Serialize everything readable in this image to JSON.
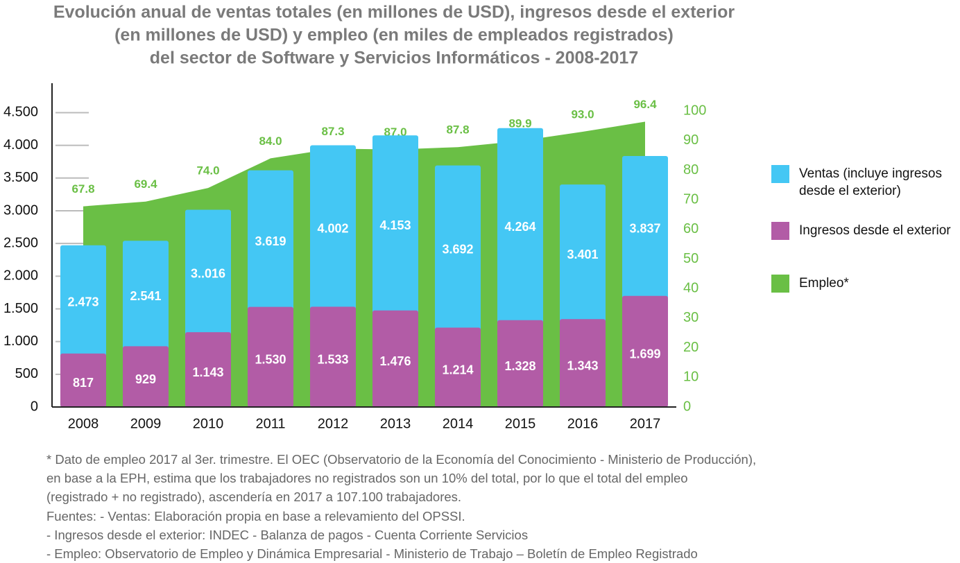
{
  "chart_data": {
    "type": "bar",
    "title": [
      "Evolución anual de ventas totales (en millones de USD), ingresos desde el exterior",
      "(en millones de USD) y empleo (en miles de empleados registrados)",
      "del sector de Software y Servicios Informáticos - 2008-2017"
    ],
    "categories": [
      "2008",
      "2009",
      "2010",
      "2011",
      "2012",
      "2013",
      "2014",
      "2015",
      "2016",
      "2017"
    ],
    "series": [
      {
        "name": "Ventas (incluye ingresos desde el exterior)",
        "color": "#44c7f4",
        "values": [
          2473,
          2541,
          3016,
          3619,
          4002,
          4153,
          3692,
          4264,
          3401,
          3837
        ],
        "value_labels": [
          "2.473",
          "2.541",
          "3..016",
          "3.619",
          "4.002",
          "4.153",
          "3.692",
          "4.264",
          "3.401",
          "3.837"
        ]
      },
      {
        "name": "Ingresos desde el exterior",
        "color": "#b25ca6",
        "values": [
          817,
          929,
          1143,
          1530,
          1533,
          1476,
          1214,
          1328,
          1343,
          1699
        ],
        "value_labels": [
          "817",
          "929",
          "1.143",
          "1.530",
          "1.533",
          "1.476",
          "1.214",
          "1.328",
          "1.343",
          "1.699"
        ]
      },
      {
        "name": "Empleo*",
        "color": "#6abf45",
        "axis": "y2",
        "values": [
          67.8,
          69.4,
          74.0,
          84.0,
          87.3,
          87.0,
          87.8,
          89.9,
          93.0,
          96.4
        ],
        "value_labels": [
          "67.8",
          "69.4",
          "74.0",
          "84.0",
          "87.3",
          "87.0",
          "87.8",
          "89.9",
          "93.0",
          "96.4"
        ]
      }
    ],
    "ylim": [
      0,
      4950
    ],
    "yticks": [
      0,
      500,
      {
        "value": 1000,
        "label": "1.000"
      },
      {
        "value": 1500,
        "label": "1.500"
      },
      {
        "value": 2000,
        "label": "2.000"
      },
      {
        "value": 2500,
        "label": "2.500"
      },
      {
        "value": 3000,
        "label": "3.000"
      },
      {
        "value": 3500,
        "label": "3.500"
      },
      {
        "value": 4000,
        "label": "4.000"
      },
      {
        "value": 4500,
        "label": "4.500"
      }
    ],
    "y2lim": [
      0,
      109.4
    ],
    "y2ticks": [
      0,
      10,
      20,
      30,
      40,
      50,
      60,
      70,
      80,
      90,
      100
    ],
    "notes": [
      "* Dato de empleo 2017 al 3er. trimestre. El OEC (Observatorio de la Economía del Conocimiento - Ministerio de Producción),",
      "en base a la EPH, estima que los trabajadores no registrados son un 10% del total, por lo que el total del empleo",
      "(registrado + no registrado), ascendería en 2017 a 107.100 trabajadores.",
      "Fuentes:  - Ventas: Elaboración propia en base a relevamiento del OPSSI.",
      "- Ingresos desde el exterior: INDEC - Balanza de pagos - Cuenta Corriente Servicios",
      "- Empleo: Observatorio de Empleo y Dinámica Empresarial - Ministerio de Trabajo – Boletín de Empleo Registrado"
    ]
  }
}
